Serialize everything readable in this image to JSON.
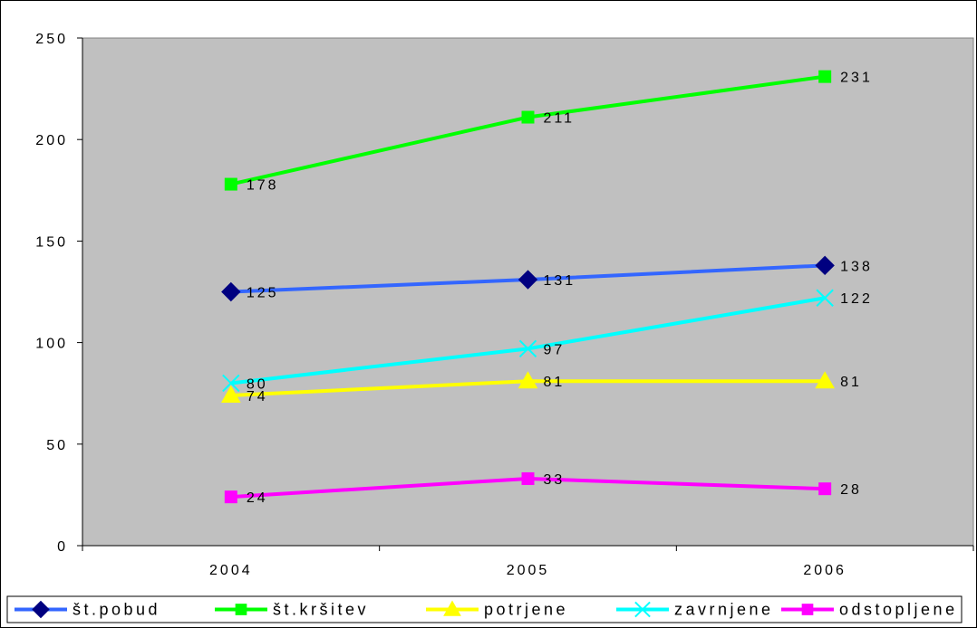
{
  "chart_data": {
    "type": "line",
    "categories": [
      "2004",
      "2005",
      "2006"
    ],
    "ylim": [
      0,
      250
    ],
    "yticks": [
      0,
      50,
      100,
      150,
      200,
      250
    ],
    "grid": false,
    "plot_background": "#C0C0C0",
    "legend_position": "bottom",
    "series": [
      {
        "name": "št.pobud",
        "values": [
          125,
          131,
          138
        ],
        "line_color": "#3366FF",
        "marker_color": "#000080",
        "marker": "diamond",
        "labels": [
          "125",
          "131",
          "138"
        ]
      },
      {
        "name": "št.kršitev",
        "values": [
          178,
          211,
          231
        ],
        "line_color": "#00FF00",
        "marker_color": "#00FF00",
        "marker": "square",
        "labels": [
          "178",
          "211",
          "231"
        ]
      },
      {
        "name": "potrjene",
        "values": [
          74,
          81,
          81
        ],
        "line_color": "#FFFF00",
        "marker_color": "#FFFF00",
        "marker": "triangle",
        "labels": [
          "74",
          "81",
          "81"
        ]
      },
      {
        "name": "zavrnjene",
        "values": [
          80,
          97,
          122
        ],
        "line_color": "#00FFFF",
        "marker_color": "#00FFFF",
        "marker": "x",
        "labels": [
          "80",
          "97",
          "122"
        ]
      },
      {
        "name": "odstopljene",
        "values": [
          24,
          33,
          28
        ],
        "line_color": "#FF00FF",
        "marker_color": "#FF00FF",
        "marker": "square",
        "labels": [
          "24",
          "33",
          "28"
        ]
      }
    ]
  }
}
